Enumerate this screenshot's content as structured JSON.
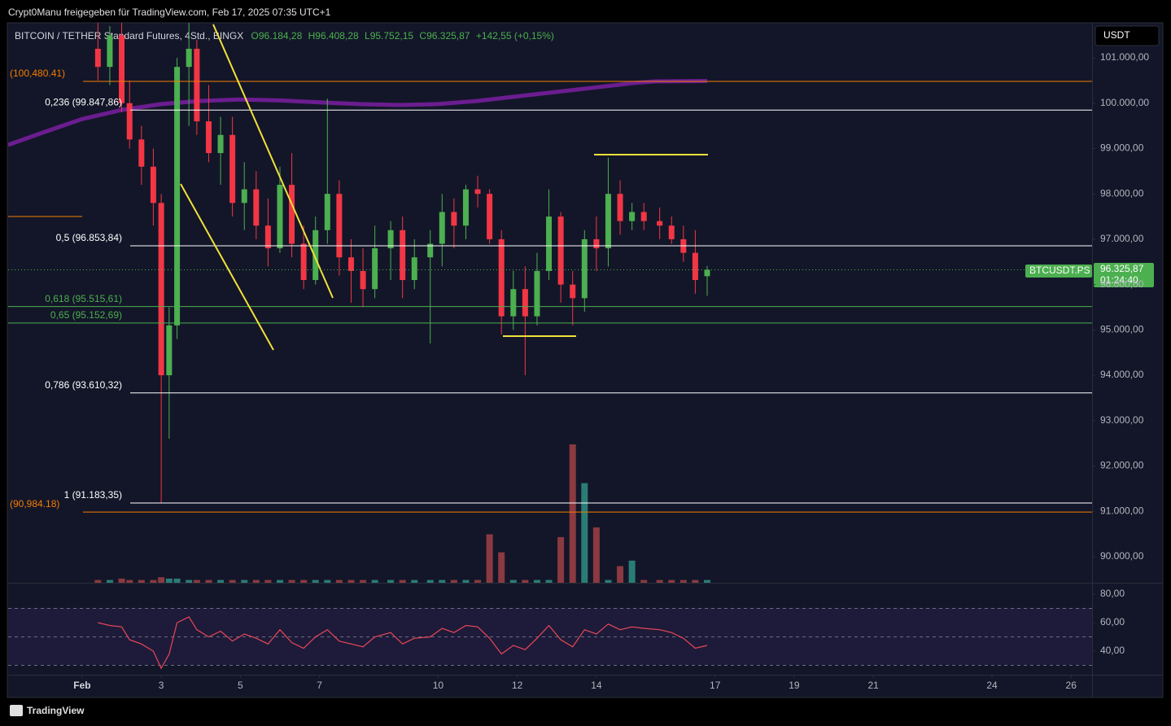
{
  "chart_data": {
    "type": "candlestick",
    "attribution": "Crypt0Manu freigegeben für TradingView.com, Feb 17, 2025 07:35 UTC+1",
    "title": "BITCOIN / TETHER Standard Futures, 4Std., BINGX",
    "ohlc": [
      "O96.184,28",
      "H96.408,28",
      "L95.752,15",
      "C96.325,87",
      "+142,55 (+0,15%)"
    ],
    "currency": "USDT",
    "symbol_label": "BTCUSDT.PS",
    "last_price": {
      "value": 96325.87,
      "label": "96.325,87"
    },
    "countdown": "01:24:40",
    "brand": "TradingView",
    "up_color": "#4caf50",
    "down_color": "#f23645",
    "volume_up_color": "#2a7d77",
    "volume_down_color": "#8a3a40",
    "xlim": [
      -0.87,
      26.53
    ],
    "xticks": [
      {
        "value": 1,
        "label": "Feb"
      },
      3,
      5,
      7,
      10,
      12,
      14,
      17,
      19,
      21,
      24,
      26
    ],
    "ylim": [
      89424,
      101773
    ],
    "yticks": [
      {
        "value": 90000,
        "label": "90.000,00"
      },
      {
        "value": 91000,
        "label": "91.000,00"
      },
      {
        "value": 92000,
        "label": "92.000,00"
      },
      {
        "value": 93000,
        "label": "93.000,00"
      },
      {
        "value": 94000,
        "label": "94.000,00"
      },
      {
        "value": 95000,
        "label": "95.000,00"
      },
      {
        "value": 96000,
        "label": "96.000,00"
      },
      {
        "value": 97000,
        "label": "97.000,00"
      },
      {
        "value": 98000,
        "label": "98.000,00"
      },
      {
        "value": 99000,
        "label": "99.000,00"
      },
      {
        "value": 100000,
        "label": "100.000,00"
      },
      {
        "value": 101000,
        "label": "101.000,00"
      }
    ],
    "x": [
      1.4,
      1.7,
      2.0,
      2.2,
      2.5,
      2.8,
      3.0,
      3.2,
      3.4,
      3.7,
      3.9,
      4.2,
      4.5,
      4.8,
      5.1,
      5.4,
      5.7,
      6.0,
      6.3,
      6.6,
      6.9,
      7.2,
      7.5,
      7.8,
      8.1,
      8.4,
      8.8,
      9.1,
      9.4,
      9.8,
      10.1,
      10.4,
      10.7,
      11.0,
      11.3,
      11.6,
      11.9,
      12.2,
      12.5,
      12.8,
      13.1,
      13.4,
      13.7,
      14.0,
      14.3,
      14.6,
      14.9,
      15.2,
      15.6,
      15.9,
      16.2,
      16.5,
      16.8
    ],
    "open": [
      101200,
      100800,
      101500,
      100000,
      99200,
      98600,
      97800,
      94000,
      95100,
      100800,
      101200,
      99600,
      98900,
      99300,
      97800,
      98100,
      97300,
      96800,
      98200,
      96900,
      96100,
      97200,
      98000,
      96600,
      96300,
      95900,
      96800,
      97200,
      96100,
      96600,
      96900,
      97600,
      97300,
      98100,
      98000,
      97000,
      95300,
      95900,
      95300,
      96300,
      97500,
      96000,
      95700,
      97000,
      96800,
      98000,
      97400,
      97600,
      97400,
      97300,
      97000,
      96700,
      96184.28
    ],
    "high": [
      101800,
      101700,
      101800,
      100500,
      99500,
      99000,
      98000,
      95500,
      101000,
      101800,
      101400,
      100400,
      99700,
      99700,
      98700,
      98500,
      97900,
      98600,
      98900,
      97300,
      97500,
      100100,
      98300,
      97000,
      96800,
      97300,
      97400,
      97500,
      97000,
      97200,
      98000,
      97900,
      98200,
      98400,
      98100,
      97200,
      96300,
      96400,
      96700,
      98100,
      97600,
      96300,
      97200,
      97500,
      98800,
      98300,
      97800,
      97800,
      97700,
      97500,
      97300,
      97200,
      96408.28
    ],
    "low": [
      100500,
      100400,
      99800,
      99000,
      98200,
      97300,
      91183,
      92600,
      94800,
      99500,
      99300,
      98700,
      98200,
      97500,
      97200,
      97000,
      96400,
      96700,
      96600,
      95900,
      96000,
      96900,
      96200,
      95600,
      95500,
      95700,
      96100,
      95700,
      95900,
      94700,
      96400,
      96800,
      97000,
      97700,
      96900,
      94900,
      95000,
      94000,
      95100,
      96100,
      95600,
      95100,
      95400,
      96300,
      96400,
      97100,
      97200,
      97200,
      97000,
      96900,
      96500,
      95800,
      95752.15
    ],
    "close": [
      100800,
      101500,
      100000,
      99200,
      98600,
      97800,
      94000,
      95100,
      100800,
      101200,
      99600,
      98900,
      99300,
      97800,
      98100,
      97300,
      96800,
      98200,
      96900,
      96100,
      97200,
      98000,
      96600,
      96300,
      95900,
      96800,
      97200,
      96100,
      96600,
      96900,
      97600,
      97300,
      98100,
      98000,
      97000,
      95300,
      95900,
      95300,
      96300,
      97500,
      96000,
      95700,
      97000,
      96800,
      98000,
      97400,
      97600,
      97400,
      97300,
      97000,
      96700,
      96100,
      96325.87
    ],
    "volume": [
      2,
      2,
      3,
      2,
      2,
      2,
      4,
      3,
      3,
      2,
      2,
      2,
      2,
      2,
      2,
      2,
      2,
      2,
      2,
      2,
      2,
      2,
      2,
      2,
      2,
      2,
      2,
      2,
      2,
      2,
      2,
      2,
      2,
      2,
      35,
      22,
      2,
      2,
      2,
      2,
      33,
      100,
      72,
      40,
      2,
      12,
      16,
      2,
      2,
      2,
      2,
      2,
      2
    ],
    "ma": {
      "color": "#7b1fa2",
      "x": [
        -0.87,
        0,
        1,
        2,
        3,
        4,
        5,
        6,
        7,
        8,
        9,
        10,
        11,
        12,
        13,
        14,
        15,
        15.5,
        16.8
      ],
      "values": [
        99080,
        99350,
        99650,
        99850,
        99980,
        100050,
        100080,
        100060,
        100020,
        99980,
        99960,
        99980,
        100050,
        100150,
        100250,
        100350,
        100450,
        100480,
        100490
      ]
    },
    "levels": [
      {
        "label": "0,236 (99.847,86)",
        "value": 99847.86,
        "color": "#ffffff"
      },
      {
        "label": "0,5 (96.853,84)",
        "value": 96853.84,
        "color": "#ffffff"
      },
      {
        "label": "0,618 (95.515,61)",
        "value": 95515.61,
        "color": "#4caf50"
      },
      {
        "label": "0,65 (95.152,69)",
        "value": 95152.69,
        "color": "#4caf50"
      },
      {
        "label": "0,786 (93.610,32)",
        "value": 93610.32,
        "color": "#ffffff"
      },
      {
        "label": "1 (91.183,35)",
        "value": 91183.35,
        "color": "#ffffff"
      },
      {
        "label": "(100,480.41)",
        "value": 100480.41,
        "color": "#f57c00"
      },
      {
        "label": "(90,984.18)",
        "value": 90984.18,
        "color": "#f57c00"
      }
    ],
    "rsi": [
      60,
      58,
      57,
      48,
      45,
      40,
      28,
      38,
      60,
      64,
      55,
      50,
      54,
      47,
      52,
      49,
      45,
      55,
      46,
      42,
      50,
      55,
      47,
      45,
      43,
      50,
      53,
      45,
      49,
      50,
      56,
      53,
      58,
      57,
      49,
      38,
      44,
      41,
      49,
      58,
      48,
      43,
      55,
      52,
      59,
      55,
      57,
      56,
      55,
      53,
      49,
      42,
      44
    ],
    "rsi_color": "#e84856",
    "rsi_ylim": [
      23.4,
      87.4
    ],
    "rsi_yticks": [
      {
        "value": 40,
        "label": "40,00"
      },
      {
        "value": 60,
        "label": "60,00"
      },
      {
        "value": 80,
        "label": "80,00"
      }
    ],
    "rsi_guides": [
      30,
      50,
      70
    ]
  }
}
